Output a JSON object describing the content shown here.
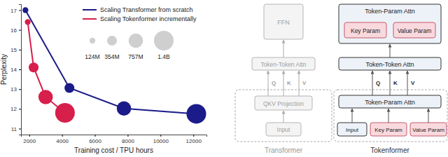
{
  "chart_data": {
    "type": "line",
    "x_label": "Training cost / TPU hours",
    "y_label": "Perplexity",
    "series": [
      {
        "name": "Scaling Transformer from scratch",
        "color": "#1b1b8a",
        "marker": "circle",
        "line_style": "solid",
        "x": [
          1770,
          4450,
          7770,
          12180
        ],
        "values": [
          17.0,
          13.06,
          12.02,
          11.75
        ],
        "sizes": [
          124,
          354,
          757,
          1400
        ]
      },
      {
        "name": "Scaling Tokenformer incrementally",
        "color": "#d71f4c",
        "marker": "circle",
        "line_style": "solid",
        "x": [
          1910,
          2270,
          3000,
          4180
        ],
        "values": [
          16.4,
          14.1,
          12.6,
          11.8
        ],
        "sizes": [
          124,
          354,
          757,
          1400
        ]
      }
    ],
    "size_legend": {
      "values": [
        124,
        354,
        757,
        1400
      ],
      "labels": [
        "124M",
        "354M",
        "757M",
        "1.4B"
      ]
    },
    "xlim": [
      1500,
      12800
    ],
    "xticks": [
      2000,
      4000,
      6000,
      8000,
      10000,
      12000
    ],
    "ylim": [
      10.7,
      17.3
    ],
    "yticks": [
      11,
      12,
      13,
      14,
      15,
      16,
      17
    ],
    "legend": "upper right",
    "grid": false
  },
  "diagram": {
    "transformer": {
      "title": "Transformer",
      "ffn": "FFN",
      "attn": "Token-Token Attn",
      "proj": "QKV Projection",
      "input": "Input",
      "qkv": [
        "Q",
        "K",
        "V"
      ]
    },
    "tokenformer": {
      "title": "Tokenformer",
      "top": "Token-Param Attn",
      "attn": "Token-Token Attn",
      "bottom": "Token-Param Attn",
      "params": [
        "Key Param",
        "Value Param"
      ],
      "input": "Input",
      "qkv": [
        "Q",
        "K",
        "V"
      ]
    }
  }
}
